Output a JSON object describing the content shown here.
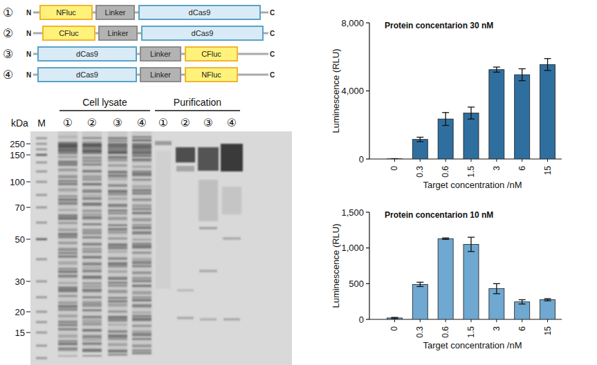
{
  "constructs": [
    {
      "index": "①",
      "terminal_n": "N",
      "terminal_c": "C",
      "domains": [
        "NFluc",
        "Linker",
        "dCas9"
      ]
    },
    {
      "index": "②",
      "terminal_n": "N",
      "terminal_c": "C",
      "domains": [
        "CFluc",
        "Linker",
        "dCas9"
      ]
    },
    {
      "index": "③",
      "terminal_n": "N",
      "terminal_c": "C",
      "domains": [
        "dCas9",
        "Linker",
        "CFluc"
      ]
    },
    {
      "index": "④",
      "terminal_n": "N",
      "terminal_c": "C",
      "domains": [
        "dCas9",
        "Linker",
        "NFluc"
      ]
    }
  ],
  "gel": {
    "y_unit": "kDa",
    "ladder_label": "M",
    "markers": [
      250,
      150,
      100,
      70,
      50,
      30,
      20,
      15
    ],
    "groups": [
      {
        "label": "Cell lysate",
        "lanes": [
          "①",
          "②",
          "③",
          "④"
        ]
      },
      {
        "label": "Purification",
        "lanes": [
          "①",
          "②",
          "③",
          "④"
        ]
      }
    ]
  },
  "chart_data": [
    {
      "type": "bar",
      "title": "Protein concentarion 30 nM",
      "x_label": "Target concentration /nM",
      "y_label": "Luminescence (RLU)",
      "categories": [
        "0",
        "0.3",
        "0.6",
        "1.5",
        "3",
        "6",
        "15"
      ],
      "values": [
        10,
        1150,
        2350,
        2700,
        5250,
        4950,
        5550
      ],
      "errors": [
        10,
        130,
        380,
        350,
        150,
        350,
        350
      ],
      "color": "#2f6f9f",
      "ylim": [
        0,
        8000
      ],
      "yticks": [
        0,
        {
          "value": 4000,
          "label": "4,000"
        },
        {
          "value": 8000,
          "label": "8,000"
        }
      ]
    },
    {
      "type": "bar",
      "title": "Protein concentarion 10 nM",
      "x_label": "Target concentration /nM",
      "y_label": "Luminescence (RLU)",
      "categories": [
        "0",
        "0.3",
        "0.6",
        "1.5",
        "3",
        "6",
        "15"
      ],
      "values": [
        20,
        490,
        1130,
        1050,
        430,
        245,
        275
      ],
      "errors": [
        8,
        30,
        10,
        100,
        70,
        30,
        15
      ],
      "color": "#6fa8d0",
      "ylim": [
        0,
        1500
      ],
      "yticks": [
        0,
        500,
        {
          "value": 1000,
          "label": "1,000"
        },
        {
          "value": 1500,
          "label": "1,500"
        }
      ]
    }
  ]
}
